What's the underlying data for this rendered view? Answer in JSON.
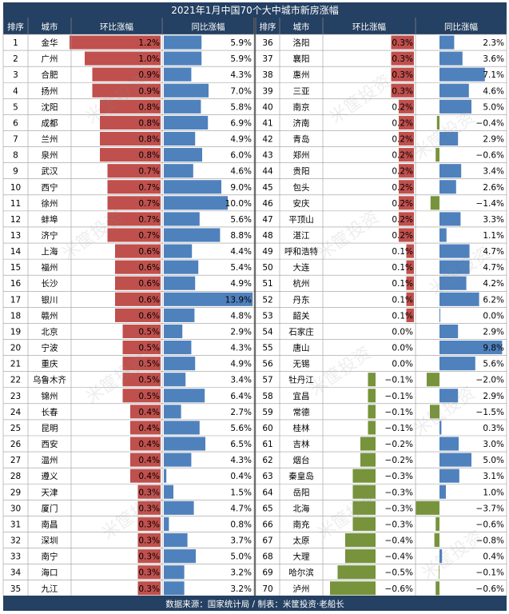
{
  "chart_data": {
    "type": "table",
    "title": "2021年1月中国70个大中城市新房涨幅",
    "source": "数据来源：国家统计局 / 制表：米筐投资·老船长",
    "headers": [
      "排序",
      "城市",
      "环比涨幅",
      "同比涨幅",
      "排序",
      "城市",
      "环比涨幅",
      "同比涨幅"
    ],
    "watermark": "米筐投资",
    "colors": {
      "header_bg": "#244062",
      "header_text": "#ffffff",
      "mom_positive": "#c0504d",
      "mom_negative": "#77933c",
      "yoy_positive": "#4f81bd",
      "yoy_negative": "#77933c",
      "grid": "#9a9a9a",
      "text": "#000000"
    },
    "rows": [
      {
        "rank": 1,
        "city": "金华",
        "mom": 1.2,
        "yoy": 5.9
      },
      {
        "rank": 2,
        "city": "广州",
        "mom": 1.0,
        "yoy": 5.9
      },
      {
        "rank": 3,
        "city": "合肥",
        "mom": 0.9,
        "yoy": 4.3
      },
      {
        "rank": 4,
        "city": "扬州",
        "mom": 0.9,
        "yoy": 7.0
      },
      {
        "rank": 5,
        "city": "沈阳",
        "mom": 0.8,
        "yoy": 5.8
      },
      {
        "rank": 6,
        "city": "成都",
        "mom": 0.8,
        "yoy": 6.9
      },
      {
        "rank": 7,
        "city": "兰州",
        "mom": 0.8,
        "yoy": 4.9
      },
      {
        "rank": 8,
        "city": "泉州",
        "mom": 0.8,
        "yoy": 6.0
      },
      {
        "rank": 9,
        "city": "武汉",
        "mom": 0.7,
        "yoy": 4.6
      },
      {
        "rank": 10,
        "city": "西宁",
        "mom": 0.7,
        "yoy": 9.0
      },
      {
        "rank": 11,
        "city": "徐州",
        "mom": 0.7,
        "yoy": 10.0
      },
      {
        "rank": 12,
        "city": "蚌埠",
        "mom": 0.7,
        "yoy": 5.6
      },
      {
        "rank": 13,
        "city": "济宁",
        "mom": 0.7,
        "yoy": 8.8
      },
      {
        "rank": 14,
        "city": "上海",
        "mom": 0.6,
        "yoy": 4.4
      },
      {
        "rank": 15,
        "city": "福州",
        "mom": 0.6,
        "yoy": 5.4
      },
      {
        "rank": 16,
        "city": "长沙",
        "mom": 0.6,
        "yoy": 4.9
      },
      {
        "rank": 17,
        "city": "银川",
        "mom": 0.6,
        "yoy": 13.9
      },
      {
        "rank": 18,
        "city": "赣州",
        "mom": 0.6,
        "yoy": 4.8
      },
      {
        "rank": 19,
        "city": "北京",
        "mom": 0.5,
        "yoy": 2.9
      },
      {
        "rank": 20,
        "city": "宁波",
        "mom": 0.5,
        "yoy": 4.3
      },
      {
        "rank": 21,
        "city": "重庆",
        "mom": 0.5,
        "yoy": 4.9
      },
      {
        "rank": 22,
        "city": "乌鲁木齐",
        "mom": 0.5,
        "yoy": 3.4
      },
      {
        "rank": 23,
        "city": "锦州",
        "mom": 0.5,
        "yoy": 6.4
      },
      {
        "rank": 24,
        "city": "长春",
        "mom": 0.4,
        "yoy": 2.7
      },
      {
        "rank": 25,
        "city": "昆明",
        "mom": 0.4,
        "yoy": 5.6
      },
      {
        "rank": 26,
        "city": "西安",
        "mom": 0.4,
        "yoy": 6.5
      },
      {
        "rank": 27,
        "city": "温州",
        "mom": 0.4,
        "yoy": 4.3
      },
      {
        "rank": 28,
        "city": "遵义",
        "mom": 0.4,
        "yoy": 0.4
      },
      {
        "rank": 29,
        "city": "天津",
        "mom": 0.3,
        "yoy": 1.5
      },
      {
        "rank": 30,
        "city": "厦门",
        "mom": 0.3,
        "yoy": 4.7
      },
      {
        "rank": 31,
        "city": "南昌",
        "mom": 0.3,
        "yoy": 0.8
      },
      {
        "rank": 32,
        "city": "深圳",
        "mom": 0.3,
        "yoy": 3.7
      },
      {
        "rank": 33,
        "city": "南宁",
        "mom": 0.3,
        "yoy": 5.0
      },
      {
        "rank": 34,
        "city": "海口",
        "mom": 0.3,
        "yoy": 3.2
      },
      {
        "rank": 35,
        "city": "九江",
        "mom": 0.3,
        "yoy": 3.2
      },
      {
        "rank": 36,
        "city": "洛阳",
        "mom": 0.3,
        "yoy": 2.3
      },
      {
        "rank": 37,
        "city": "襄阳",
        "mom": 0.3,
        "yoy": 3.6
      },
      {
        "rank": 38,
        "city": "惠州",
        "mom": 0.3,
        "yoy": 7.1
      },
      {
        "rank": 39,
        "city": "三亚",
        "mom": 0.3,
        "yoy": 4.6
      },
      {
        "rank": 40,
        "city": "南京",
        "mom": 0.2,
        "yoy": 5.0
      },
      {
        "rank": 41,
        "city": "济南",
        "mom": 0.2,
        "yoy": -0.4
      },
      {
        "rank": 42,
        "city": "青岛",
        "mom": 0.2,
        "yoy": 2.9
      },
      {
        "rank": 43,
        "city": "郑州",
        "mom": 0.2,
        "yoy": -0.6
      },
      {
        "rank": 44,
        "city": "贵阳",
        "mom": 0.2,
        "yoy": 3.4
      },
      {
        "rank": 45,
        "city": "包头",
        "mom": 0.2,
        "yoy": 2.6
      },
      {
        "rank": 46,
        "city": "安庆",
        "mom": 0.2,
        "yoy": -1.4
      },
      {
        "rank": 47,
        "city": "平顶山",
        "mom": 0.2,
        "yoy": 3.3
      },
      {
        "rank": 48,
        "city": "湛江",
        "mom": 0.2,
        "yoy": 1.1
      },
      {
        "rank": 49,
        "city": "呼和浩特",
        "mom": 0.1,
        "yoy": 4.7
      },
      {
        "rank": 50,
        "city": "大连",
        "mom": 0.1,
        "yoy": 4.7
      },
      {
        "rank": 51,
        "city": "杭州",
        "mom": 0.1,
        "yoy": 4.2
      },
      {
        "rank": 52,
        "city": "丹东",
        "mom": 0.1,
        "yoy": 6.2
      },
      {
        "rank": 53,
        "city": "韶关",
        "mom": 0.1,
        "yoy": 0.0
      },
      {
        "rank": 54,
        "city": "石家庄",
        "mom": 0.0,
        "yoy": 2.9
      },
      {
        "rank": 55,
        "city": "唐山",
        "mom": 0.0,
        "yoy": 9.8
      },
      {
        "rank": 56,
        "city": "无锡",
        "mom": 0.0,
        "yoy": 5.6
      },
      {
        "rank": 57,
        "city": "牡丹江",
        "mom": -0.1,
        "yoy": -2.0
      },
      {
        "rank": 58,
        "city": "宜昌",
        "mom": -0.1,
        "yoy": 2.9
      },
      {
        "rank": 59,
        "city": "常德",
        "mom": -0.1,
        "yoy": -1.5
      },
      {
        "rank": 60,
        "city": "桂林",
        "mom": -0.1,
        "yoy": 0.3
      },
      {
        "rank": 61,
        "city": "吉林",
        "mom": -0.2,
        "yoy": 3.0
      },
      {
        "rank": 62,
        "city": "烟台",
        "mom": -0.2,
        "yoy": 5.0
      },
      {
        "rank": 63,
        "city": "秦皇岛",
        "mom": -0.3,
        "yoy": 3.1
      },
      {
        "rank": 64,
        "city": "岳阳",
        "mom": -0.3,
        "yoy": 1.0
      },
      {
        "rank": 65,
        "city": "北海",
        "mom": -0.3,
        "yoy": -3.7
      },
      {
        "rank": 66,
        "city": "南充",
        "mom": -0.3,
        "yoy": -0.6
      },
      {
        "rank": 67,
        "city": "太原",
        "mom": -0.4,
        "yoy": -0.8
      },
      {
        "rank": 68,
        "city": "大理",
        "mom": -0.4,
        "yoy": 0.4
      },
      {
        "rank": 69,
        "city": "哈尔滨",
        "mom": -0.5,
        "yoy": -0.1
      },
      {
        "rank": 70,
        "city": "泸州",
        "mom": -0.6,
        "yoy": -0.6
      }
    ]
  }
}
